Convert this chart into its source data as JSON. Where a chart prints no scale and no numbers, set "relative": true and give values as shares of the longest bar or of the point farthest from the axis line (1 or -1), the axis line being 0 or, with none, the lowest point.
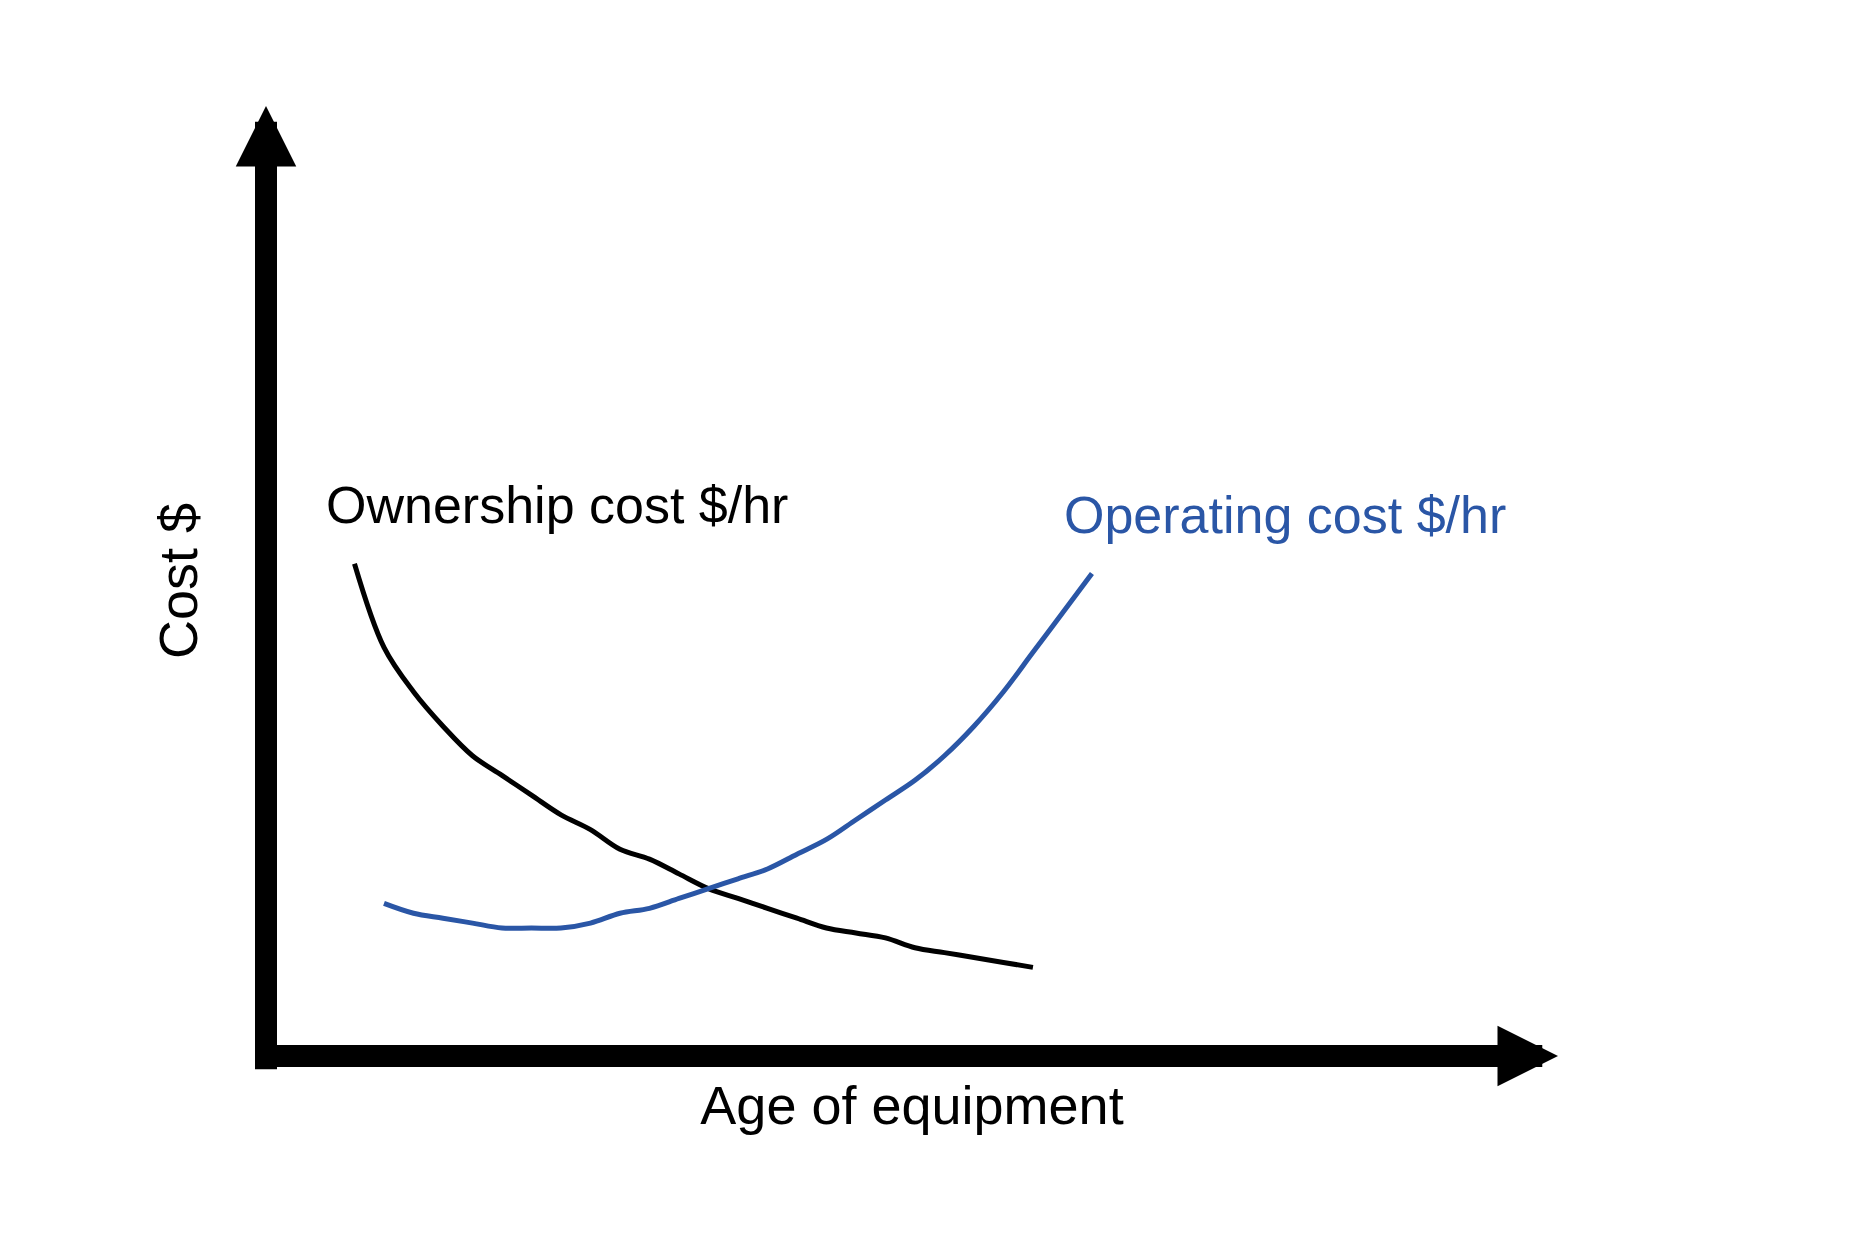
{
  "chart_data": {
    "type": "line",
    "relative": true,
    "xlabel": "Age of equipment",
    "ylabel": "Cost $",
    "legend": false,
    "marker": "none",
    "line_style": "solid",
    "categories": [
      null,
      null,
      null,
      null,
      null,
      null,
      null,
      null,
      null,
      null,
      null,
      null,
      null,
      null,
      null,
      null,
      null,
      null,
      null,
      null,
      null,
      null,
      null,
      null,
      null,
      null
    ],
    "series": [
      {
        "name": "Ownership cost $/hr",
        "color": "#000000",
        "values": [
          1.0,
          0.83,
          0.74,
          0.67,
          0.61,
          0.57,
          0.53,
          0.49,
          0.46,
          0.42,
          0.4,
          0.37,
          0.34,
          0.32,
          0.3,
          0.28,
          0.26,
          0.25,
          0.24,
          0.22,
          0.21,
          0.2,
          0.19,
          0.18,
          null,
          null
        ]
      },
      {
        "name": "Operating cost $/hr",
        "color": "#2a56a6",
        "values": [
          null,
          0.31,
          0.29,
          0.28,
          0.27,
          0.26,
          0.26,
          0.26,
          0.27,
          0.29,
          0.3,
          0.32,
          0.34,
          0.36,
          0.38,
          0.41,
          0.44,
          0.48,
          0.52,
          0.56,
          0.61,
          0.67,
          0.74,
          0.82,
          0.9,
          0.98
        ]
      }
    ]
  }
}
